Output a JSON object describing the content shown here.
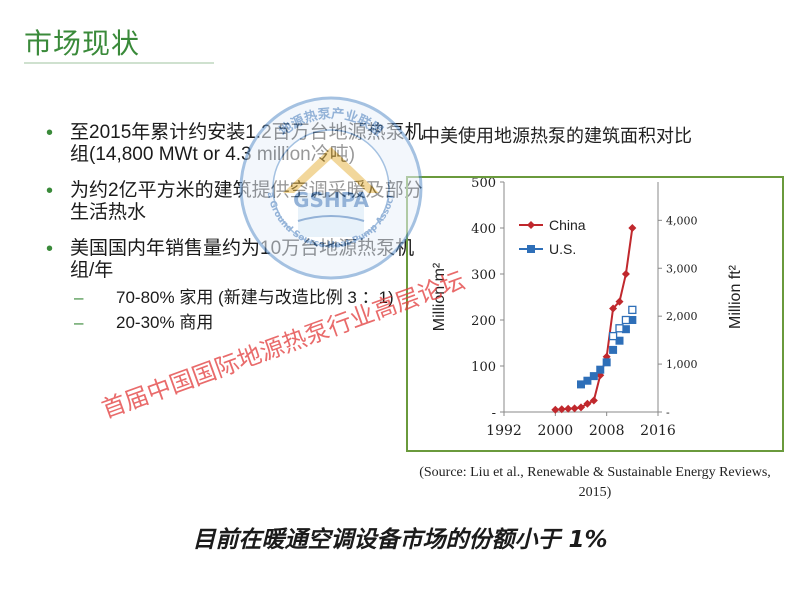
{
  "slide": {
    "title": "市场现状",
    "bullets": [
      {
        "text": "至2015年累计约安装1.2百万台地源热泵机组(14,800 MWt or 4.3 million冷吨)"
      },
      {
        "text": "为约2亿平方米的建筑提供空调采暖及部分生活热水"
      },
      {
        "text": "美国国内年销售量约为10万台地源热泵机组/年",
        "subitems": [
          "70-80% 家用 (新建与改造比例 3 ：1)",
          "20-30% 商用"
        ]
      }
    ],
    "chart_title": "中美使用地源热泵的建筑面积对比",
    "source": "(Source: Liu et al., Renewable & Sustainable Energy Reviews, 2015)",
    "bottom_note": "目前在暖通空调设备市场的份额小于 1%"
  },
  "logo": {
    "text_top": "地源热泵产业联盟",
    "abbr": "GSHPA",
    "text_bottom": "China Ground Source Heat Pump Association"
  },
  "watermark": "首届中国国际地源热泵行业高层论坛",
  "colors": {
    "title_green": "#3a8a3a",
    "china": "#c0282d",
    "us": "#2e6fb8",
    "border": "#6a9a3c",
    "watermark": "#e23a3a"
  },
  "chart_data": {
    "type": "line",
    "xlabel": "",
    "ylabel": "Million m²",
    "y2label": "Million ft²",
    "x_ticks": [
      "1992",
      "2000",
      "2008",
      "2016"
    ],
    "xlim": [
      1992,
      2016
    ],
    "ylim": [
      0,
      500
    ],
    "y_ticks": [
      "-",
      "100",
      "200",
      "300",
      "400",
      "500"
    ],
    "y2lim": [
      0,
      4800
    ],
    "y2_ticks": [
      "-",
      "1,000",
      "2,000",
      "3,000",
      "4,000"
    ],
    "legend": "top-left",
    "series": [
      {
        "name": "China",
        "color": "#c0282d",
        "marker": "diamond",
        "x": [
          2000,
          2001,
          2002,
          2003,
          2004,
          2005,
          2006,
          2007,
          2008,
          2009,
          2010,
          2011,
          2012
        ],
        "y": [
          5,
          6,
          7,
          8,
          10,
          18,
          25,
          80,
          120,
          225,
          240,
          300,
          400
        ]
      },
      {
        "name": "U.S.",
        "color": "#2e6fb8",
        "marker": "square",
        "x": [
          2004,
          2005,
          2006,
          2007,
          2008,
          2009,
          2010,
          2011,
          2012
        ],
        "y": [
          60,
          68,
          78,
          92,
          108,
          135,
          155,
          180,
          200
        ]
      },
      {
        "name": "",
        "color": "#2e6fb8",
        "marker": "open-square",
        "x": [
          2009,
          2010,
          2011,
          2012
        ],
        "y": [
          165,
          182,
          200,
          222
        ]
      }
    ]
  }
}
